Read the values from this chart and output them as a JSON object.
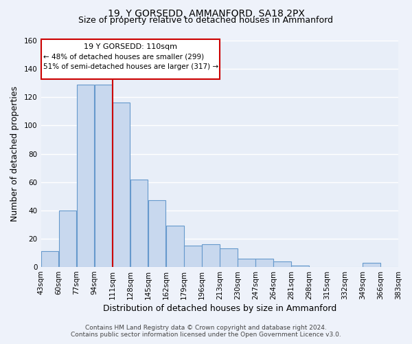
{
  "title": "19, Y GORSEDD, AMMANFORD, SA18 2PX",
  "subtitle": "Size of property relative to detached houses in Ammanford",
  "xlabel": "Distribution of detached houses by size in Ammanford",
  "ylabel": "Number of detached properties",
  "bar_left_edges": [
    43,
    60,
    77,
    94,
    111,
    128,
    145,
    162,
    179,
    196,
    213,
    230,
    247,
    264,
    281,
    298,
    315,
    332,
    349,
    366
  ],
  "bar_heights": [
    11,
    40,
    129,
    129,
    116,
    62,
    47,
    29,
    15,
    16,
    13,
    6,
    6,
    4,
    1,
    0,
    0,
    0,
    3,
    0
  ],
  "bin_width": 17,
  "bar_color": "#c8d8ee",
  "bar_edgecolor": "#6699cc",
  "property_line_x": 111,
  "property_line_color": "#cc0000",
  "ylim": [
    0,
    160
  ],
  "yticks": [
    0,
    20,
    40,
    60,
    80,
    100,
    120,
    140,
    160
  ],
  "xtick_labels": [
    "43sqm",
    "60sqm",
    "77sqm",
    "94sqm",
    "111sqm",
    "128sqm",
    "145sqm",
    "162sqm",
    "179sqm",
    "196sqm",
    "213sqm",
    "230sqm",
    "247sqm",
    "264sqm",
    "281sqm",
    "298sqm",
    "315sqm",
    "332sqm",
    "349sqm",
    "366sqm",
    "383sqm"
  ],
  "annotation_line1": "19 Y GORSEDD: 110sqm",
  "annotation_line2": "← 48% of detached houses are smaller (299)",
  "annotation_line3": "51% of semi-detached houses are larger (317) →",
  "footer_line1": "Contains HM Land Registry data © Crown copyright and database right 2024.",
  "footer_line2": "Contains public sector information licensed under the Open Government Licence v3.0.",
  "background_color": "#eef2fa",
  "plot_bg_color": "#e8eef8",
  "grid_color": "#ffffff",
  "title_fontsize": 10,
  "subtitle_fontsize": 9,
  "axis_label_fontsize": 9,
  "tick_fontsize": 7.5,
  "footer_fontsize": 6.5,
  "annotation_fontsize": 8
}
